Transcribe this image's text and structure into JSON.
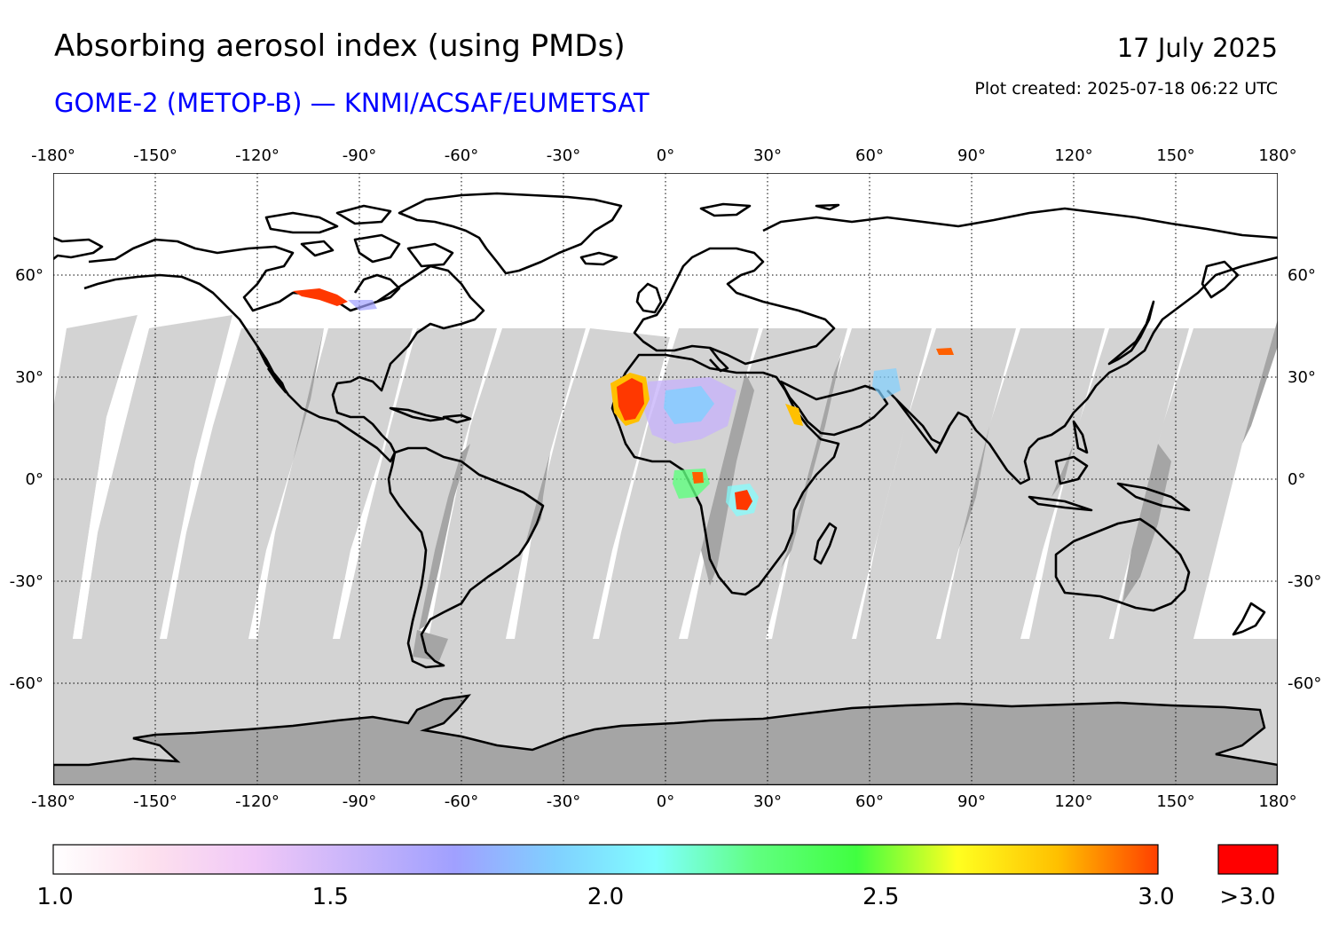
{
  "header": {
    "title": "Absorbing aerosol index (using PMDs)",
    "subtitle": "GOME-2 (METOP-B) — KNMI/ACSAF/EUMETSAT",
    "date": "17 July 2025",
    "created": "Plot created: 2025-07-18 06:22 UTC",
    "subtitle_color": "#0000ff"
  },
  "map": {
    "projection": "equirectangular",
    "lon_range": [
      -180,
      180
    ],
    "lat_range": [
      -90,
      90
    ],
    "lon_ticks": [
      "-180°",
      "-150°",
      "-120°",
      "-90°",
      "-60°",
      "-30°",
      "0°",
      "30°",
      "60°",
      "90°",
      "120°",
      "150°",
      "180°"
    ],
    "lat_ticks": [
      "60°",
      "30°",
      "0°",
      "-30°",
      "-60°"
    ],
    "grid": "dotted",
    "no_data_color": "#d3d3d3",
    "no_data_land_color": "#a5a5a5",
    "coastline_color": "#000000",
    "high_aerosol_regions": [
      {
        "name": "West Sahara",
        "lon": -10,
        "lat": 23,
        "level": ">3.0"
      },
      {
        "name": "Central Africa",
        "lon": 23,
        "lat": -6,
        "level": ">3.0"
      },
      {
        "name": "Canada",
        "lon": -100,
        "lat": 55,
        "level": ">3.0"
      },
      {
        "name": "Gulf of Guinea",
        "lon": 10,
        "lat": 1,
        "level": "3.0"
      },
      {
        "name": "Central Asia",
        "lon": 80,
        "lat": 37,
        "level": "3.0"
      }
    ]
  },
  "colorbar": {
    "min": 1.0,
    "max": 3.0,
    "ticks": [
      "1.0",
      "1.5",
      "2.0",
      "2.5",
      "3.0"
    ],
    "overflow_label": ">3.0",
    "overflow_color": "#ff0000",
    "stops": [
      "#ffffff",
      "#fde0ee",
      "#f0c8f8",
      "#c8b4fa",
      "#a0a0ff",
      "#80d0ff",
      "#80ffff",
      "#60ff80",
      "#40ff40",
      "#ffff20",
      "#ffc000",
      "#ff4000"
    ]
  }
}
